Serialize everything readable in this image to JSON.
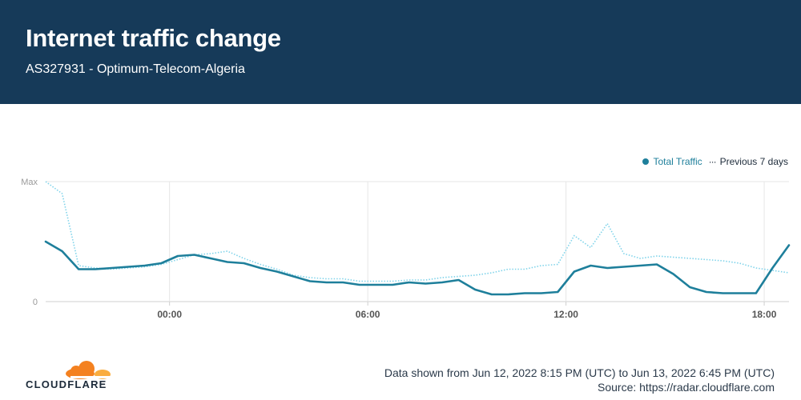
{
  "header": {
    "title": "Internet traffic change",
    "subtitle": "AS327931 - Optimum-Telecom-Algeria"
  },
  "legend": {
    "total_label": "Total Traffic",
    "previous_label": "Previous 7 days",
    "previous_marker": "···"
  },
  "colors": {
    "header_bg": "#163a59",
    "total": "#1e7f9b",
    "previous": "#7fd3ea",
    "grid": "#e6e6e6",
    "logo_orange": "#f48120",
    "logo_light": "#faad3f"
  },
  "footer": {
    "range_text": "Data shown from Jun 12, 2022 8:15 PM (UTC) to Jun 13, 2022 6:45 PM (UTC)",
    "source_text": "Source: https://radar.cloudflare.com",
    "brand": "CLOUDFLARE"
  },
  "chart_data": {
    "type": "line",
    "x_unit": "hours since 2022-06-12 20:15 UTC",
    "x": [
      0,
      0.5,
      1,
      1.5,
      2,
      2.5,
      3,
      3.5,
      4,
      4.5,
      5,
      5.5,
      6,
      6.5,
      7,
      7.5,
      8,
      8.5,
      9,
      9.5,
      10,
      10.5,
      11,
      11.5,
      12,
      12.5,
      13,
      13.5,
      14,
      14.5,
      15,
      15.5,
      16,
      16.5,
      17,
      17.5,
      18,
      18.5,
      19,
      19.5,
      20,
      20.5,
      21,
      21.5,
      22,
      22.5
    ],
    "x_ticks": [
      "00:00",
      "06:00",
      "12:00",
      "18:00"
    ],
    "x_tick_hours": [
      3.75,
      9.75,
      15.75,
      21.75
    ],
    "y_labels": [
      "Max",
      "0"
    ],
    "ylim": [
      0,
      100
    ],
    "series": [
      {
        "name": "Total Traffic",
        "values": [
          50,
          42,
          27,
          27,
          28,
          29,
          30,
          32,
          38,
          39,
          36,
          33,
          32,
          28,
          25,
          21,
          17,
          16,
          16,
          14,
          14,
          14,
          16,
          15,
          16,
          18,
          10,
          6,
          6,
          7,
          7,
          8,
          25,
          30,
          28,
          29,
          30,
          31,
          23,
          12,
          8,
          7,
          7,
          7,
          28,
          47
        ]
      },
      {
        "name": "Previous 7 days",
        "values": [
          100,
          90,
          30,
          28,
          27,
          28,
          29,
          31,
          35,
          39,
          40,
          42,
          36,
          31,
          27,
          22,
          20,
          19,
          19,
          17,
          17,
          17,
          18,
          18,
          20,
          21,
          22,
          24,
          27,
          27,
          30,
          31,
          55,
          45,
          65,
          40,
          36,
          38,
          37,
          36,
          35,
          34,
          32,
          28,
          26,
          24
        ]
      }
    ]
  }
}
